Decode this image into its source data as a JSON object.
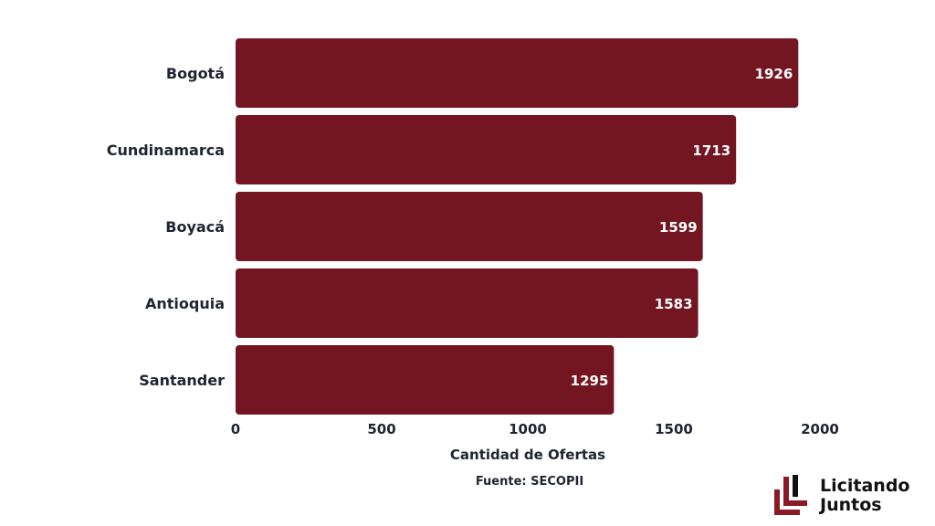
{
  "chart_data": {
    "type": "bar",
    "orientation": "horizontal",
    "categories": [
      "Bogotá",
      "Cundinamarca",
      "Boyacá",
      "Antioquia",
      "Santander"
    ],
    "values": [
      1926,
      1713,
      1599,
      1583,
      1295
    ],
    "value_labels": [
      "1926",
      "1713",
      "1599",
      "1583",
      "1295"
    ],
    "xlabel": "Cantidad de Ofertas",
    "ylabel": "",
    "xlim": [
      0,
      2000
    ],
    "xticks": [
      0,
      500,
      1000,
      1500,
      2000
    ],
    "xtick_labels": [
      "0",
      "500",
      "1000",
      "1500",
      "2000"
    ],
    "bar_color": "#731621",
    "grid": false,
    "legend": "none"
  },
  "source": "Fuente: SECOPII",
  "logo": {
    "line1": "Licitando",
    "line2": "Juntos",
    "color": "#8b1a26"
  }
}
